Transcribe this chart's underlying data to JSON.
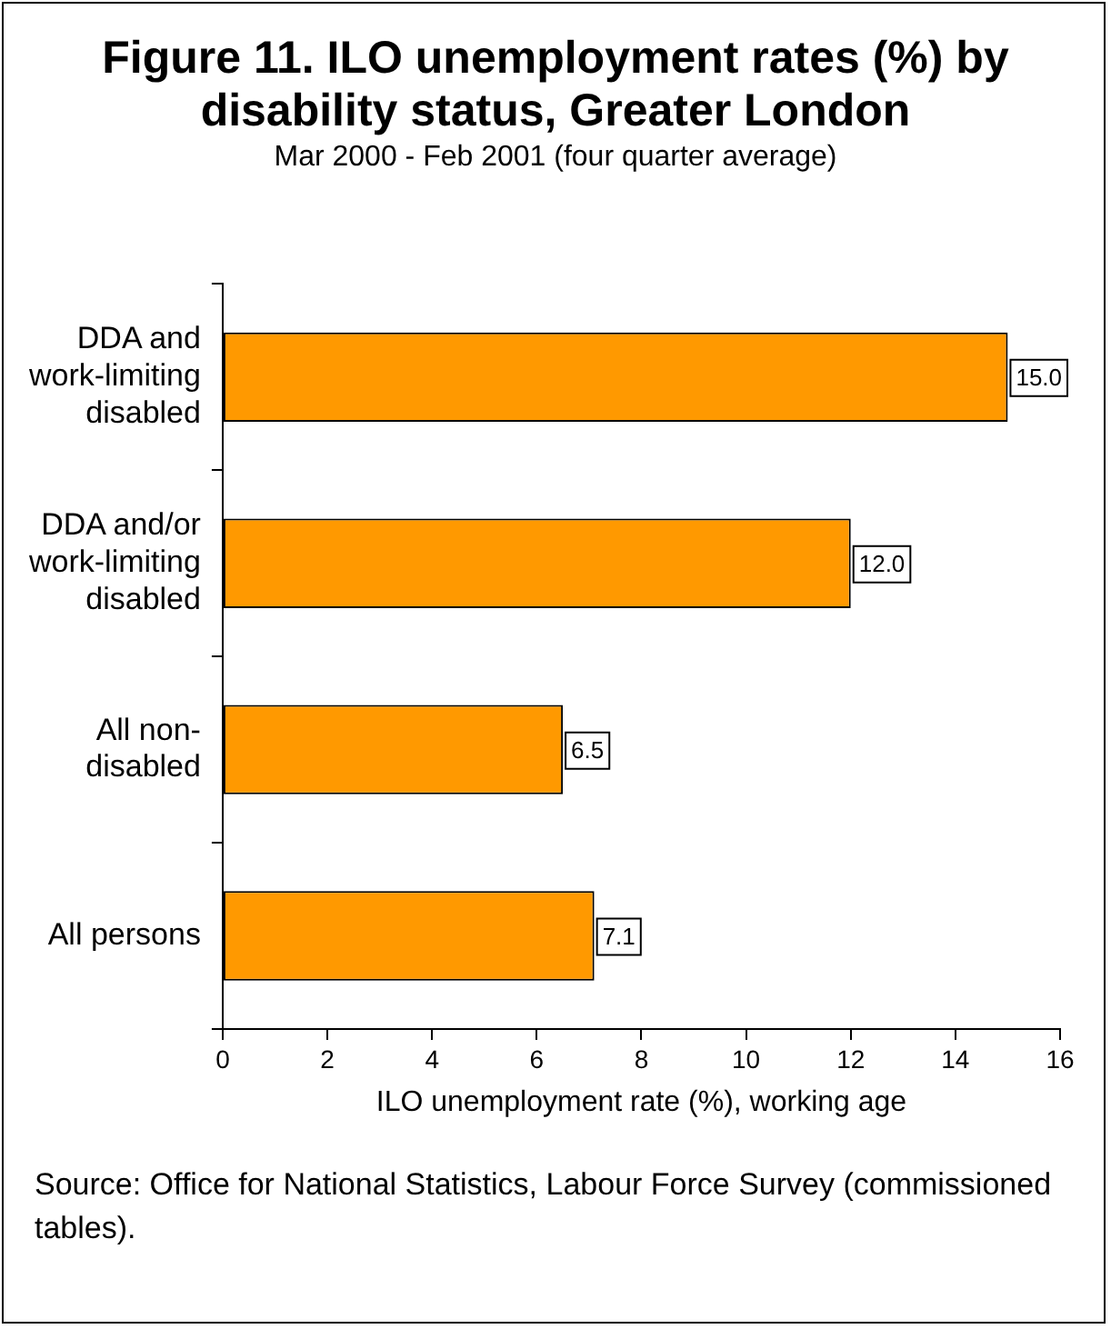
{
  "chart_data": {
    "type": "bar",
    "orientation": "horizontal",
    "title": "Figure 11. ILO unemployment rates (%) by disability status, Greater London",
    "subtitle": "Mar 2000 - Feb 2001 (four quarter average)",
    "xlabel": "ILO unemployment rate (%), working age",
    "categories": [
      "DDA and\nwork-limiting\ndisabled",
      "DDA and/or\nwork-limiting\ndisabled",
      "All non-\ndisabled",
      "All persons"
    ],
    "values": [
      15.0,
      12.0,
      6.5,
      7.1
    ],
    "value_labels": [
      "15.0",
      "12.0",
      "6.5",
      "7.1"
    ],
    "color": "#ff9900",
    "xlim": [
      0,
      16
    ],
    "xticks": [
      0,
      2,
      4,
      6,
      8,
      10,
      12,
      14,
      16
    ],
    "grid": false,
    "legend": false,
    "annotations": [
      "Source: Office for National Statistics, Labour Force Survey (commissioned tables)."
    ]
  }
}
